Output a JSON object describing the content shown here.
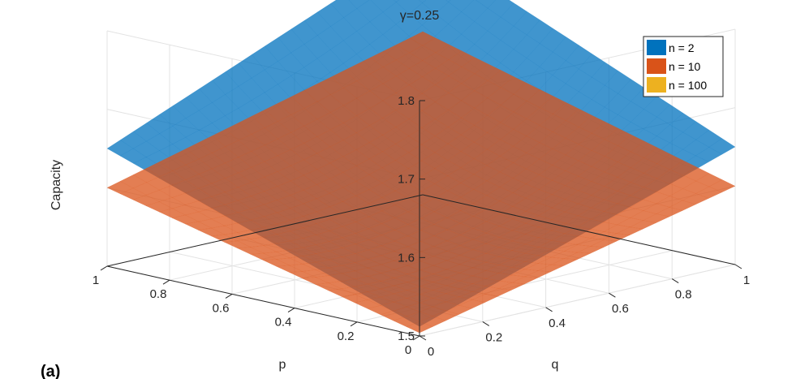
{
  "panel_label": "(a)",
  "chart_data": {
    "type": "surface3d",
    "title": "γ=0.25",
    "xlabel": "p",
    "ylabel": "q",
    "zlabel": "Capacity",
    "xlim": [
      0,
      1
    ],
    "ylim": [
      0,
      1
    ],
    "zlim": [
      1.5,
      1.8
    ],
    "x_ticks": [
      "0",
      "0.2",
      "0.4",
      "0.6",
      "0.8",
      "1"
    ],
    "y_ticks": [
      "0",
      "0.2",
      "0.4",
      "0.6",
      "0.8",
      "1"
    ],
    "z_ticks": [
      "1.5",
      "1.6",
      "1.7",
      "1.8"
    ],
    "grid": true,
    "legend_position": "top-right",
    "series": [
      {
        "name": "n = 2",
        "color": "#0072BD",
        "opacity": 0.75,
        "corner_values": {
          "p0_q0": 1.512,
          "p1_q0": 1.65,
          "p0_q1": 1.65,
          "p1_q1": 1.82
        },
        "center_value": 1.6
      },
      {
        "name": "n = 10",
        "color": "#D95319",
        "opacity": 0.75,
        "corner_values": {
          "p0_q0": 1.504,
          "p1_q0": 1.6,
          "p0_q1": 1.6,
          "p1_q1": 1.708
        },
        "center_value": 1.56
      },
      {
        "name": "n = 100",
        "color": "#EDB120",
        "opacity": 0.75,
        "corner_values": null,
        "center_value": null
      }
    ]
  }
}
